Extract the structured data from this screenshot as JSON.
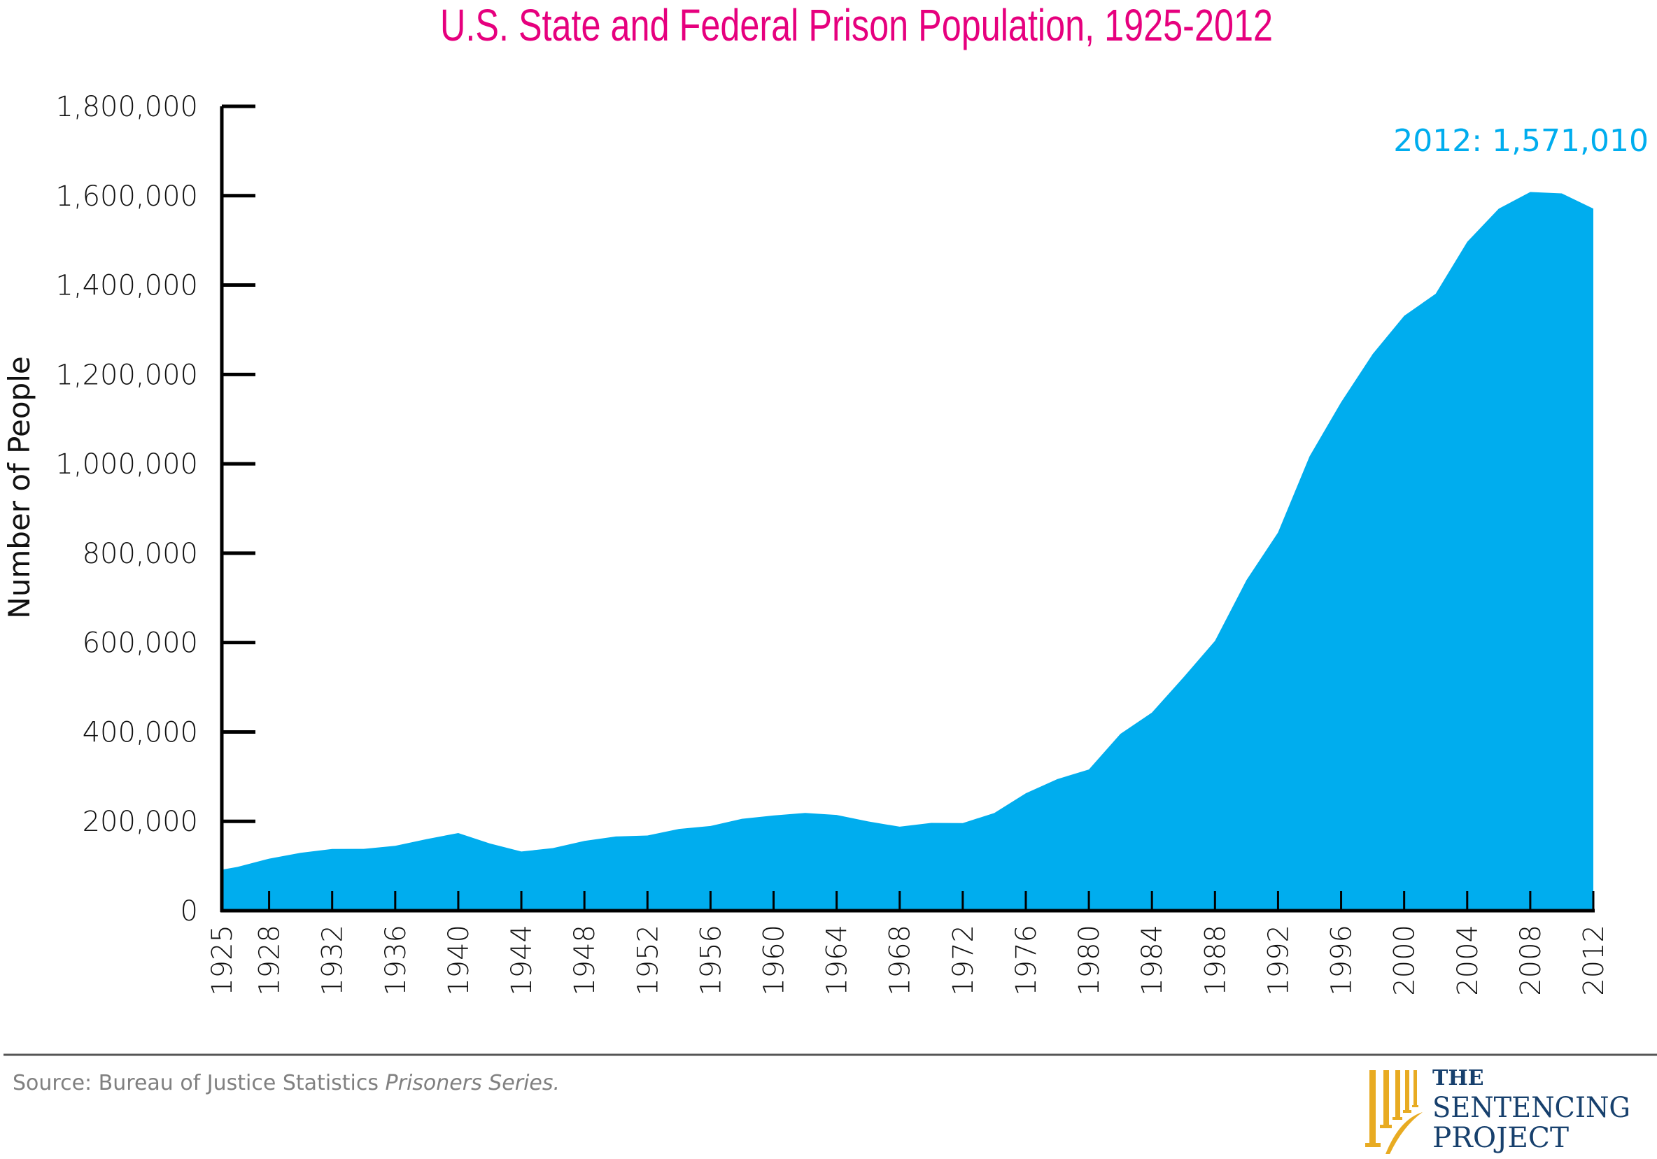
{
  "chart_data": {
    "type": "area",
    "title": "U.S. State and Federal Prison Population, 1925-2012",
    "ylabel": "Number of People",
    "xlabel": "",
    "ylim": [
      0,
      1800000
    ],
    "xlim": [
      1925,
      2012
    ],
    "yticks": [
      0,
      200000,
      400000,
      600000,
      800000,
      1000000,
      1200000,
      1400000,
      1600000,
      1800000
    ],
    "ytick_labels": [
      "0",
      "200,000",
      "400,000",
      "600,000",
      "800,000",
      "1,000,000",
      "1,200,000",
      "1,400,000",
      "1,600,000",
      "1,800,000"
    ],
    "xticks": [
      1925,
      1928,
      1932,
      1936,
      1940,
      1944,
      1948,
      1952,
      1956,
      1960,
      1964,
      1968,
      1972,
      1976,
      1980,
      1984,
      1988,
      1992,
      1996,
      2000,
      2004,
      2008,
      2012
    ],
    "x": [
      1925,
      1926,
      1928,
      1930,
      1932,
      1934,
      1936,
      1938,
      1940,
      1942,
      1944,
      1946,
      1948,
      1950,
      1952,
      1954,
      1956,
      1958,
      1960,
      1962,
      1964,
      1966,
      1968,
      1970,
      1972,
      1974,
      1976,
      1978,
      1980,
      1982,
      1984,
      1986,
      1988,
      1990,
      1992,
      1994,
      1996,
      1998,
      2000,
      2002,
      2004,
      2006,
      2008,
      2010,
      2012
    ],
    "values": [
      91669,
      97991,
      116390,
      129453,
      137997,
      138316,
      145038,
      160285,
      173706,
      150384,
      132456,
      140079,
      155977,
      166123,
      168233,
      182901,
      189565,
      205643,
      212953,
      218830,
      214336,
      199654,
      187914,
      196429,
      196092,
      218466,
      262833,
      294396,
      315974,
      395516,
      443398,
      522084,
      603732,
      739980,
      846277,
      1016691,
      1137722,
      1245402,
      1331278,
      1380516,
      1496629,
      1570861,
      1608282,
      1605127,
      1571010
    ],
    "annotation": "2012: 1,571,010",
    "grid": false,
    "legend": "none",
    "colors": {
      "fill": "#00adee",
      "title": "#e6007e",
      "annotation": "#00adee",
      "axis": "#000000"
    }
  },
  "footer": {
    "source_prefix": "Source: Bureau of Justice Statistics ",
    "source_italic": "Prisoners Series.",
    "logo": {
      "line1": "THE",
      "line2": "SENTENCING",
      "line3": "PROJECT",
      "colors": {
        "text": "#17406d",
        "columns": "#e8ab22"
      }
    }
  }
}
